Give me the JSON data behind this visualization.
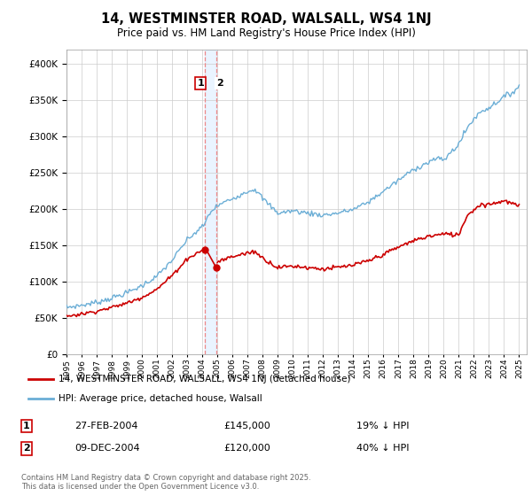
{
  "title": "14, WESTMINSTER ROAD, WALSALL, WS4 1NJ",
  "subtitle": "Price paid vs. HM Land Registry's House Price Index (HPI)",
  "hpi_color": "#6baed6",
  "price_color": "#cc0000",
  "transaction1_date": "27-FEB-2004",
  "transaction1_price": 145000,
  "transaction1_hpi_diff": "19% ↓ HPI",
  "transaction2_date": "09-DEC-2004",
  "transaction2_price": 120000,
  "transaction2_hpi_diff": "40% ↓ HPI",
  "legend_label_price": "14, WESTMINSTER ROAD, WALSALL, WS4 1NJ (detached house)",
  "legend_label_hpi": "HPI: Average price, detached house, Walsall",
  "footer": "Contains HM Land Registry data © Crown copyright and database right 2025.\nThis data is licensed under the Open Government Licence v3.0.",
  "ylim": [
    0,
    420000
  ],
  "yticks": [
    0,
    50000,
    100000,
    150000,
    200000,
    250000,
    300000,
    350000,
    400000
  ],
  "xstart_year": 1995,
  "xend_year": 2025,
  "hpi_anchors_x": [
    1995,
    1996,
    1997,
    1998,
    1999,
    2000,
    2001,
    2002,
    2003,
    2004.1,
    2004.5,
    2005,
    2006,
    2007,
    2007.5,
    2008,
    2009,
    2010,
    2011,
    2012,
    2013,
    2014,
    2015,
    2016,
    2017,
    2018,
    2019,
    2019.5,
    2020,
    2021,
    2021.5,
    2022,
    2022.5,
    2023,
    2024,
    2024.5,
    2025
  ],
  "hpi_anchors_y": [
    65000,
    68000,
    72000,
    78000,
    85000,
    95000,
    108000,
    130000,
    158000,
    178000,
    195000,
    205000,
    215000,
    225000,
    228000,
    215000,
    195000,
    198000,
    195000,
    192000,
    195000,
    200000,
    210000,
    225000,
    240000,
    255000,
    265000,
    270000,
    268000,
    290000,
    310000,
    325000,
    335000,
    340000,
    355000,
    360000,
    370000
  ],
  "price_anchors_x_pre": [
    1995,
    1996,
    1997,
    1998,
    1999,
    2000,
    2001,
    2002,
    2003,
    2004.1
  ],
  "price_anchors_y_pre": [
    53000,
    56000,
    60000,
    65000,
    71000,
    79000,
    90000,
    109000,
    132000,
    145000
  ],
  "price_anchors_x_post": [
    2004.9,
    2005,
    2006,
    2007,
    2007.5,
    2008,
    2009,
    2010,
    2011,
    2012,
    2013,
    2014,
    2015,
    2016,
    2017,
    2018,
    2019,
    2020,
    2021,
    2021.5,
    2022,
    2022.5,
    2023,
    2024,
    2024.5,
    2025
  ],
  "price_anchors_y_post": [
    120000,
    128000,
    135000,
    140000,
    142000,
    133000,
    120000,
    122000,
    120000,
    118000,
    120000,
    123000,
    129000,
    138000,
    148000,
    157000,
    163000,
    166000,
    165000,
    190000,
    200000,
    207000,
    207000,
    212000,
    208000,
    205000
  ]
}
